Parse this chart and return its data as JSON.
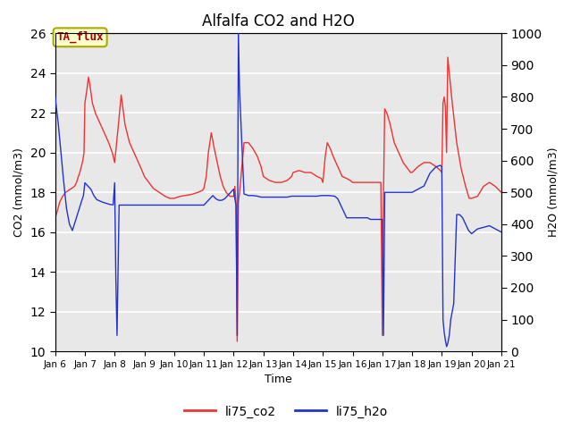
{
  "title": "Alfalfa CO2 and H2O",
  "ylabel_left": "CO2 (mmol/m3)",
  "ylabel_right": "H2O (mmol/m3)",
  "xlabel": "Time",
  "ylim_left": [
    10,
    26
  ],
  "ylim_right": [
    0,
    1000
  ],
  "yticks_left": [
    10,
    12,
    14,
    16,
    18,
    20,
    22,
    24,
    26
  ],
  "yticks_right": [
    0,
    100,
    200,
    300,
    400,
    500,
    600,
    700,
    800,
    900,
    1000
  ],
  "bg_color": "#e8e8e8",
  "grid_color": "#ffffff",
  "annotation_text": "TA_flux",
  "annotation_color": "#aa0000",
  "annotation_bg": "#ffffcc",
  "annotation_edge": "#aaaa00",
  "line_co2_color": "#ee3333",
  "line_h2o_color": "#2233cc",
  "legend_co2": "li75_co2",
  "legend_h2o": "li75_h2o",
  "co2_x": [
    6.0,
    6.08,
    6.15,
    6.25,
    6.35,
    6.45,
    6.55,
    6.65,
    6.72,
    6.78,
    6.83,
    6.88,
    6.93,
    6.97,
    7.0,
    7.03,
    7.07,
    7.12,
    7.17,
    7.25,
    7.35,
    7.5,
    7.65,
    7.8,
    7.92,
    8.0,
    8.12,
    8.22,
    8.35,
    8.5,
    8.65,
    8.8,
    8.92,
    9.0,
    9.15,
    9.3,
    9.5,
    9.7,
    9.85,
    10.0,
    10.2,
    10.4,
    10.6,
    10.8,
    10.95,
    11.0,
    11.08,
    11.15,
    11.25,
    11.35,
    11.45,
    11.55,
    11.65,
    11.75,
    11.88,
    12.0,
    12.04,
    12.08,
    12.12,
    12.16,
    12.2,
    12.35,
    12.5,
    12.65,
    12.8,
    12.92,
    13.0,
    13.2,
    13.4,
    13.6,
    13.8,
    13.95,
    14.0,
    14.2,
    14.4,
    14.6,
    14.8,
    14.95,
    15.0,
    15.08,
    15.15,
    15.25,
    15.35,
    15.5,
    15.65,
    15.8,
    15.92,
    16.0,
    16.2,
    16.4,
    16.6,
    16.8,
    16.95,
    17.0,
    17.04,
    17.08,
    17.15,
    17.25,
    17.4,
    17.55,
    17.7,
    17.85,
    17.95,
    18.0,
    18.2,
    18.4,
    18.6,
    18.8,
    18.95,
    19.0,
    19.04,
    19.08,
    19.12,
    19.16,
    19.2,
    19.35,
    19.5,
    19.65,
    19.8,
    19.92,
    20.0,
    20.2,
    20.4,
    20.6,
    20.8,
    21.0
  ],
  "co2_y": [
    16.7,
    17.1,
    17.5,
    17.8,
    18.0,
    18.1,
    18.2,
    18.3,
    18.5,
    18.8,
    19.0,
    19.3,
    19.6,
    20.0,
    22.5,
    22.8,
    23.2,
    23.8,
    23.4,
    22.5,
    22.0,
    21.5,
    21.0,
    20.5,
    20.0,
    19.5,
    21.3,
    22.9,
    21.4,
    20.5,
    20.0,
    19.5,
    19.1,
    18.8,
    18.5,
    18.2,
    18.0,
    17.8,
    17.7,
    17.7,
    17.8,
    17.85,
    17.9,
    18.0,
    18.1,
    18.2,
    18.8,
    20.0,
    21.0,
    20.2,
    19.5,
    18.8,
    18.3,
    18.0,
    17.8,
    17.8,
    18.3,
    17.5,
    10.5,
    17.5,
    18.0,
    20.5,
    20.5,
    20.2,
    19.8,
    19.3,
    18.8,
    18.6,
    18.5,
    18.5,
    18.6,
    18.8,
    19.0,
    19.1,
    19.0,
    19.0,
    18.8,
    18.7,
    18.5,
    19.8,
    20.5,
    20.2,
    19.8,
    19.3,
    18.8,
    18.7,
    18.6,
    18.5,
    18.5,
    18.5,
    18.5,
    18.5,
    18.5,
    10.8,
    18.0,
    22.2,
    22.0,
    21.5,
    20.5,
    20.0,
    19.5,
    19.2,
    19.0,
    19.0,
    19.3,
    19.5,
    19.5,
    19.3,
    19.1,
    19.0,
    22.5,
    22.8,
    22.3,
    20.0,
    24.8,
    22.5,
    20.5,
    19.2,
    18.3,
    17.7,
    17.7,
    17.8,
    18.3,
    18.5,
    18.3,
    18.0
  ],
  "h2o_x": [
    6.0,
    6.05,
    6.1,
    6.18,
    6.28,
    6.38,
    6.48,
    6.58,
    6.68,
    6.78,
    6.88,
    6.95,
    7.0,
    7.1,
    7.2,
    7.3,
    7.4,
    7.5,
    7.6,
    7.7,
    7.8,
    7.9,
    7.95,
    8.0,
    8.04,
    8.08,
    8.15,
    8.3,
    8.5,
    8.7,
    8.9,
    8.95,
    9.0,
    9.2,
    9.4,
    9.6,
    9.8,
    9.95,
    10.0,
    10.2,
    10.4,
    10.6,
    10.8,
    10.95,
    11.0,
    11.1,
    11.2,
    11.3,
    11.4,
    11.5,
    11.6,
    11.7,
    11.8,
    11.9,
    11.95,
    12.0,
    12.04,
    12.08,
    12.12,
    12.16,
    12.2,
    12.35,
    12.5,
    12.65,
    12.8,
    12.92,
    13.0,
    13.2,
    13.4,
    13.6,
    13.8,
    13.95,
    14.0,
    14.2,
    14.4,
    14.6,
    14.8,
    14.95,
    15.0,
    15.2,
    15.4,
    15.5,
    15.6,
    15.8,
    15.95,
    16.0,
    16.2,
    16.4,
    16.5,
    16.6,
    16.8,
    16.95,
    17.0,
    17.04,
    17.08,
    17.2,
    17.4,
    17.6,
    17.8,
    17.95,
    18.0,
    18.2,
    18.4,
    18.6,
    18.8,
    18.95,
    19.0,
    19.04,
    19.08,
    19.12,
    19.16,
    19.2,
    19.25,
    19.3,
    19.4,
    19.5,
    19.6,
    19.7,
    19.8,
    19.9,
    19.95,
    20.0,
    20.2,
    20.4,
    20.6,
    20.8,
    21.0
  ],
  "h2o_y": [
    800,
    760,
    720,
    640,
    540,
    450,
    400,
    380,
    410,
    440,
    470,
    490,
    530,
    520,
    510,
    490,
    477,
    473,
    469,
    466,
    463,
    461,
    461,
    530,
    230,
    50,
    460,
    460,
    460,
    460,
    460,
    460,
    460,
    460,
    460,
    460,
    460,
    460,
    460,
    460,
    460,
    460,
    460,
    460,
    460,
    470,
    480,
    490,
    480,
    475,
    475,
    480,
    490,
    500,
    505,
    510,
    480,
    460,
    50,
    1000,
    820,
    495,
    490,
    490,
    488,
    485,
    485,
    485,
    485,
    485,
    485,
    488,
    488,
    488,
    488,
    488,
    488,
    490,
    490,
    490,
    488,
    480,
    460,
    420,
    420,
    420,
    420,
    420,
    420,
    415,
    415,
    415,
    415,
    50,
    500,
    500,
    500,
    500,
    500,
    500,
    500,
    510,
    520,
    560,
    580,
    585,
    580,
    100,
    60,
    35,
    15,
    25,
    50,
    100,
    150,
    430,
    430,
    420,
    400,
    380,
    375,
    370,
    385,
    390,
    395,
    385,
    375
  ]
}
